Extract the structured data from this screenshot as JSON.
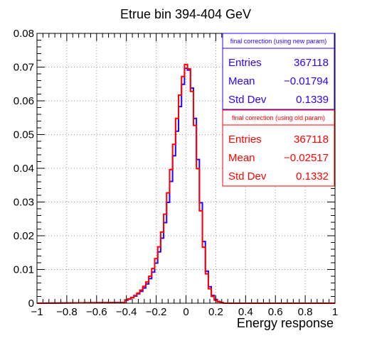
{
  "chart_data": {
    "type": "histogram",
    "title": "Etrue bin 394-404 GeV",
    "xlabel": "Energy response",
    "ylabel": "",
    "xlim": [
      -1,
      1
    ],
    "ylim": [
      0,
      0.08
    ],
    "x_ticks": [
      "−1",
      "−0.8",
      "−0.6",
      "−0.4",
      "−0.2",
      "0",
      "0.2",
      "0.4",
      "0.6",
      "0.8",
      "1"
    ],
    "y_ticks": [
      "0",
      "0.01",
      "0.02",
      "0.03",
      "0.04",
      "0.05",
      "0.06",
      "0.07",
      "0.08"
    ],
    "grid": true,
    "bin_edges_range": [
      -1,
      1
    ],
    "bin_count": 200,
    "series": [
      {
        "color": "#2b00ff",
        "bins": [
          {
            "x": -0.4,
            "y": 0.0009
          },
          {
            "x": -0.38,
            "y": 0.0012
          },
          {
            "x": -0.36,
            "y": 0.0016
          },
          {
            "x": -0.34,
            "y": 0.0021
          },
          {
            "x": -0.32,
            "y": 0.0028
          },
          {
            "x": -0.3,
            "y": 0.0035
          },
          {
            "x": -0.28,
            "y": 0.0045
          },
          {
            "x": -0.26,
            "y": 0.0057
          },
          {
            "x": -0.24,
            "y": 0.0073
          },
          {
            "x": -0.22,
            "y": 0.0092
          },
          {
            "x": -0.2,
            "y": 0.0119
          },
          {
            "x": -0.18,
            "y": 0.0152
          },
          {
            "x": -0.16,
            "y": 0.0193
          },
          {
            "x": -0.14,
            "y": 0.0239
          },
          {
            "x": -0.12,
            "y": 0.0299
          },
          {
            "x": -0.1,
            "y": 0.0361
          },
          {
            "x": -0.08,
            "y": 0.0437
          },
          {
            "x": -0.06,
            "y": 0.051
          },
          {
            "x": -0.04,
            "y": 0.0583
          },
          {
            "x": -0.02,
            "y": 0.0649
          },
          {
            "x": 0.0,
            "y": 0.0696
          },
          {
            "x": 0.02,
            "y": 0.0691
          },
          {
            "x": 0.04,
            "y": 0.0638
          },
          {
            "x": 0.06,
            "y": 0.0548
          },
          {
            "x": 0.08,
            "y": 0.0426
          },
          {
            "x": 0.1,
            "y": 0.0298
          },
          {
            "x": 0.12,
            "y": 0.0183
          },
          {
            "x": 0.14,
            "y": 0.0095
          },
          {
            "x": 0.16,
            "y": 0.0049
          },
          {
            "x": 0.18,
            "y": 0.0023
          },
          {
            "x": 0.2,
            "y": 0.0011
          },
          {
            "x": 0.22,
            "y": 0.0005
          },
          {
            "x": 0.24,
            "y": 0.0002
          }
        ]
      },
      {
        "color": "#ff0000",
        "bins": [
          {
            "x": -0.4,
            "y": 0.001
          },
          {
            "x": -0.38,
            "y": 0.0013
          },
          {
            "x": -0.36,
            "y": 0.0017
          },
          {
            "x": -0.34,
            "y": 0.0023
          },
          {
            "x": -0.32,
            "y": 0.003
          },
          {
            "x": -0.3,
            "y": 0.0039
          },
          {
            "x": -0.28,
            "y": 0.005
          },
          {
            "x": -0.26,
            "y": 0.0063
          },
          {
            "x": -0.24,
            "y": 0.008
          },
          {
            "x": -0.22,
            "y": 0.0103
          },
          {
            "x": -0.2,
            "y": 0.0132
          },
          {
            "x": -0.18,
            "y": 0.0167
          },
          {
            "x": -0.16,
            "y": 0.0211
          },
          {
            "x": -0.14,
            "y": 0.0264
          },
          {
            "x": -0.12,
            "y": 0.0327
          },
          {
            "x": -0.1,
            "y": 0.0396
          },
          {
            "x": -0.08,
            "y": 0.0471
          },
          {
            "x": -0.06,
            "y": 0.0548
          },
          {
            "x": -0.04,
            "y": 0.0617
          },
          {
            "x": -0.02,
            "y": 0.0672
          },
          {
            "x": 0.0,
            "y": 0.0708
          },
          {
            "x": 0.02,
            "y": 0.0695
          },
          {
            "x": 0.04,
            "y": 0.0628
          },
          {
            "x": 0.06,
            "y": 0.0527
          },
          {
            "x": 0.08,
            "y": 0.0399
          },
          {
            "x": 0.1,
            "y": 0.0274
          },
          {
            "x": 0.12,
            "y": 0.0166
          },
          {
            "x": 0.14,
            "y": 0.0087
          },
          {
            "x": 0.16,
            "y": 0.0043
          },
          {
            "x": 0.18,
            "y": 0.002
          },
          {
            "x": 0.2,
            "y": 0.0009
          },
          {
            "x": 0.22,
            "y": 0.0004
          },
          {
            "x": 0.24,
            "y": 0.0002
          }
        ]
      }
    ],
    "stats_boxes": [
      {
        "header": "final correction (using new param)",
        "color": "#2b00ff",
        "rows": [
          {
            "label": "Entries",
            "value": "367118"
          },
          {
            "label": "Mean",
            "value": "−0.01794"
          },
          {
            "label": "Std Dev",
            "value": "0.1339"
          }
        ]
      },
      {
        "header": "final correction (using old param)",
        "color": "#ff0000",
        "rows": [
          {
            "label": "Entries",
            "value": "367118"
          },
          {
            "label": "Mean",
            "value": "−0.02517"
          },
          {
            "label": "Std Dev",
            "value": "0.1332"
          }
        ]
      }
    ]
  }
}
